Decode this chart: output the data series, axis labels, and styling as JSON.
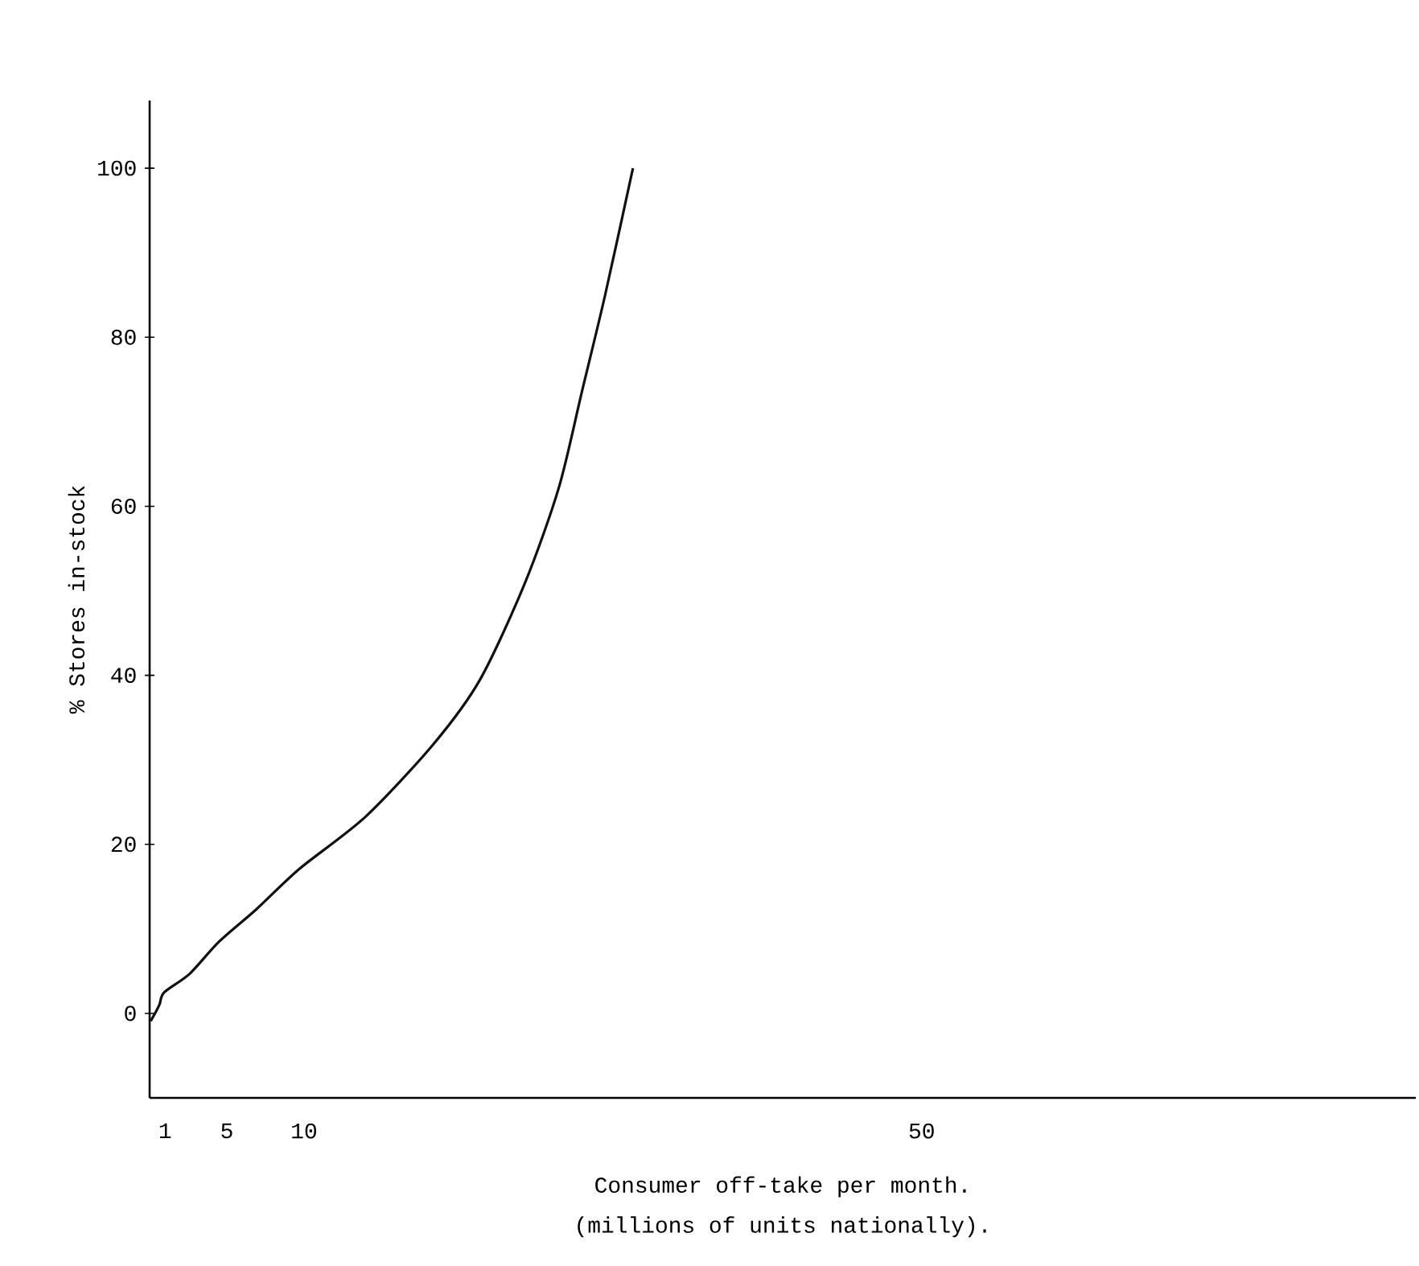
{
  "chart_data": {
    "type": "line",
    "xlabel": "Consumer off-take per month.",
    "ylabel": "% Stores  in-stock",
    "annotations": [
      "(millions of units nationally)."
    ],
    "x": [
      0.07,
      0.41,
      0.65,
      0.95,
      2.6,
      4.5,
      6.9,
      9.7,
      14,
      18.4,
      21.4,
      24.3,
      26.5,
      28,
      29.5,
      31.3
    ],
    "series": [
      {
        "color": "#111111",
        "values": [
          -0.9,
          0.2,
          1.1,
          2.5,
          4.7,
          8.5,
          12.3,
          17.1,
          23.3,
          31.9,
          39.5,
          50.9,
          62.2,
          73.6,
          85,
          100
        ]
      }
    ],
    "xlim": [
      0,
      82
    ],
    "ylim": [
      -10,
      108
    ],
    "xticks": [
      1,
      5,
      10,
      50
    ],
    "yticks": [
      0,
      20,
      40,
      60,
      80,
      100
    ],
    "grid": false,
    "marker": "none",
    "line_style": "solid"
  }
}
